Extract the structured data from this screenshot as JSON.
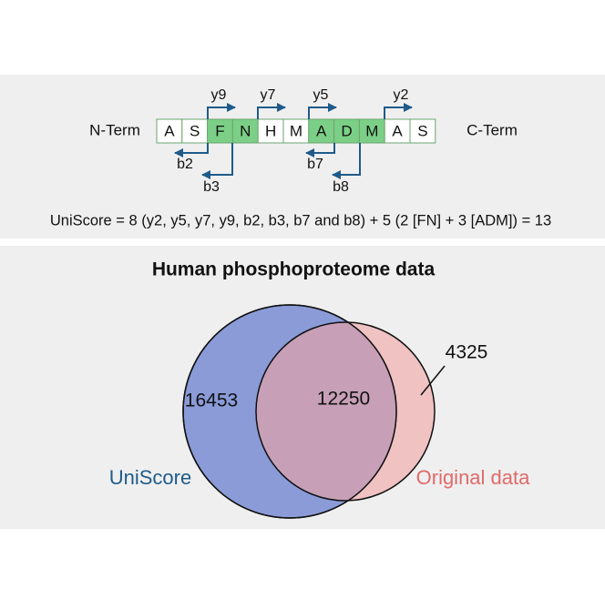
{
  "peptide": {
    "n_term": "N-Term",
    "c_term": "C-Term",
    "residues": [
      {
        "letter": "A",
        "color": "#ffffff"
      },
      {
        "letter": "S",
        "color": "#ffffff"
      },
      {
        "letter": "F",
        "color": "#7ccf86"
      },
      {
        "letter": "N",
        "color": "#7ccf86"
      },
      {
        "letter": "H",
        "color": "#ffffff"
      },
      {
        "letter": "M",
        "color": "#ffffff"
      },
      {
        "letter": "A",
        "color": "#7ccf86"
      },
      {
        "letter": "D",
        "color": "#7ccf86"
      },
      {
        "letter": "M",
        "color": "#7ccf86"
      },
      {
        "letter": "A",
        "color": "#ffffff"
      },
      {
        "letter": "S",
        "color": "#ffffff"
      }
    ],
    "y_ions": [
      "y9",
      "y7",
      "y5",
      "y2"
    ],
    "b_ions": [
      "b2",
      "b3",
      "b7",
      "b8"
    ]
  },
  "formula": "UniScore = 8 (y2, y5, y7, y9, b2, b3, b7 and b8) + 5 (2 [FN] + 3 [ADM]) = 13",
  "venn": {
    "title": "Human phosphoproteome data",
    "left": {
      "name": "UniScore",
      "count": "16453",
      "color": "#8a9bd8"
    },
    "right": {
      "name": "Original data",
      "count": "4325",
      "color": "#f0a3a3"
    },
    "overlap": "12250"
  }
}
